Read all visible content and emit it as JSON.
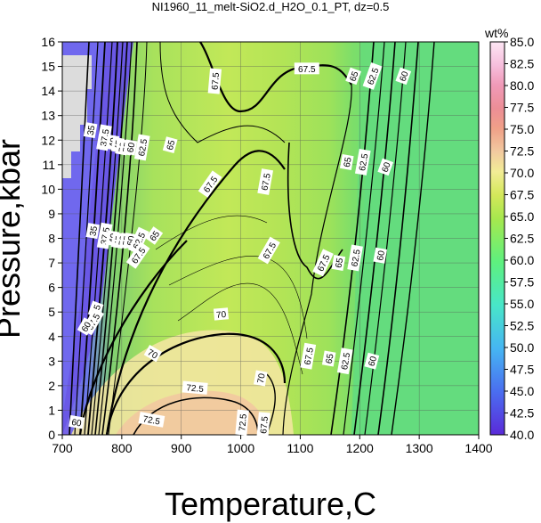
{
  "chart_data": {
    "type": "heatmap",
    "title": "NI1960_11_melt-SiO2.d_H2O_0.1_PT, dz=0.5",
    "xlabel": "Temperature,C",
    "ylabel": "Pressure,kbar",
    "xlim": [
      700,
      1400
    ],
    "ylim": [
      0,
      16
    ],
    "x_ticks": [
      700,
      800,
      900,
      1000,
      1100,
      1200,
      1300,
      1400
    ],
    "y_ticks": [
      0,
      1,
      2,
      3,
      4,
      5,
      6,
      7,
      8,
      9,
      10,
      11,
      12,
      13,
      14,
      15,
      16
    ],
    "grid": true,
    "colorbar": {
      "label": "wt%",
      "min": 40.0,
      "max": 85.0,
      "ticks": [
        "40.0",
        "42.5",
        "45.0",
        "47.5",
        "50.0",
        "52.5",
        "55.0",
        "57.5",
        "60.0",
        "62.5",
        "65.0",
        "67.5",
        "70.0",
        "72.5",
        "75.0",
        "77.5",
        "80.0",
        "82.5",
        "85.0"
      ],
      "placement": "right"
    },
    "contour_labels": [
      {
        "text": "35",
        "x": 748,
        "y": 12.4,
        "angle": -80
      },
      {
        "text": "37.5",
        "x": 771,
        "y": 12.1,
        "angle": -80
      },
      {
        "text": "40",
        "x": 785,
        "y": 11.9,
        "angle": -80
      },
      {
        "text": "45",
        "x": 794,
        "y": 11.8,
        "angle": -80
      },
      {
        "text": "50",
        "x": 801,
        "y": 11.7,
        "angle": -80
      },
      {
        "text": "55",
        "x": 808,
        "y": 11.7,
        "angle": -80
      },
      {
        "text": "60",
        "x": 815,
        "y": 11.7,
        "angle": -80
      },
      {
        "text": "62.5",
        "x": 835,
        "y": 11.7,
        "angle": -80
      },
      {
        "text": "65",
        "x": 882,
        "y": 11.8,
        "angle": -75
      },
      {
        "text": "67.5",
        "x": 949,
        "y": 10.2,
        "angle": -55
      },
      {
        "text": "67.5",
        "x": 1042,
        "y": 10.3,
        "angle": -80
      },
      {
        "text": "67.5",
        "x": 957,
        "y": 14.4,
        "angle": -85
      },
      {
        "text": "67.5",
        "x": 1111,
        "y": 14.9,
        "angle": 0
      },
      {
        "text": "65",
        "x": 1190,
        "y": 14.6,
        "angle": -70
      },
      {
        "text": "62.5",
        "x": 1222,
        "y": 14.6,
        "angle": -70
      },
      {
        "text": "60",
        "x": 1274,
        "y": 14.6,
        "angle": -70
      },
      {
        "text": "65",
        "x": 1179,
        "y": 11.1,
        "angle": -80
      },
      {
        "text": "62.5",
        "x": 1206,
        "y": 11.1,
        "angle": -80
      },
      {
        "text": "60",
        "x": 1244,
        "y": 10.9,
        "angle": -70
      },
      {
        "text": "35",
        "x": 752,
        "y": 8.3,
        "angle": -80
      },
      {
        "text": "37.5",
        "x": 772,
        "y": 8.1,
        "angle": -80
      },
      {
        "text": "40",
        "x": 785,
        "y": 8.0,
        "angle": -80
      },
      {
        "text": "45",
        "x": 794,
        "y": 7.9,
        "angle": -80
      },
      {
        "text": "50",
        "x": 801,
        "y": 7.9,
        "angle": -80
      },
      {
        "text": "55",
        "x": 808,
        "y": 7.9,
        "angle": -80
      },
      {
        "text": "60",
        "x": 815,
        "y": 7.9,
        "angle": -80
      },
      {
        "text": "62.5",
        "x": 829,
        "y": 7.9,
        "angle": -65
      },
      {
        "text": "65",
        "x": 855,
        "y": 8.1,
        "angle": -55
      },
      {
        "text": "67.5",
        "x": 828,
        "y": 7.3,
        "angle": -55
      },
      {
        "text": "67.5",
        "x": 1048,
        "y": 7.5,
        "angle": -60
      },
      {
        "text": "67.5",
        "x": 1139,
        "y": 7.0,
        "angle": -65
      },
      {
        "text": "65",
        "x": 1165,
        "y": 7.0,
        "angle": -80
      },
      {
        "text": "62.5",
        "x": 1193,
        "y": 7.2,
        "angle": -80
      },
      {
        "text": "60",
        "x": 1235,
        "y": 7.3,
        "angle": -80
      },
      {
        "text": "65",
        "x": 757,
        "y": 5.1,
        "angle": -70
      },
      {
        "text": "67.5",
        "x": 752,
        "y": 4.6,
        "angle": -60
      },
      {
        "text": "60",
        "x": 740,
        "y": 4.4,
        "angle": -60
      },
      {
        "text": "70",
        "x": 967,
        "y": 4.9,
        "angle": -5
      },
      {
        "text": "70",
        "x": 852,
        "y": 3.3,
        "angle": 30
      },
      {
        "text": "70",
        "x": 1034,
        "y": 2.3,
        "angle": -80
      },
      {
        "text": "67.5",
        "x": 1114,
        "y": 3.2,
        "angle": -80
      },
      {
        "text": "65",
        "x": 1149,
        "y": 3.1,
        "angle": -80
      },
      {
        "text": "62.5",
        "x": 1176,
        "y": 3.0,
        "angle": -80
      },
      {
        "text": "60",
        "x": 1221,
        "y": 3.0,
        "angle": -75
      },
      {
        "text": "72.5",
        "x": 923,
        "y": 1.9,
        "angle": 5
      },
      {
        "text": "72.5",
        "x": 850,
        "y": 0.6,
        "angle": 10
      },
      {
        "text": "72.5",
        "x": 1003,
        "y": 0.5,
        "angle": -85
      },
      {
        "text": "67.5",
        "x": 1039,
        "y": 0.4,
        "angle": -85
      },
      {
        "text": "60",
        "x": 724,
        "y": 0.5,
        "angle": 10
      }
    ]
  }
}
